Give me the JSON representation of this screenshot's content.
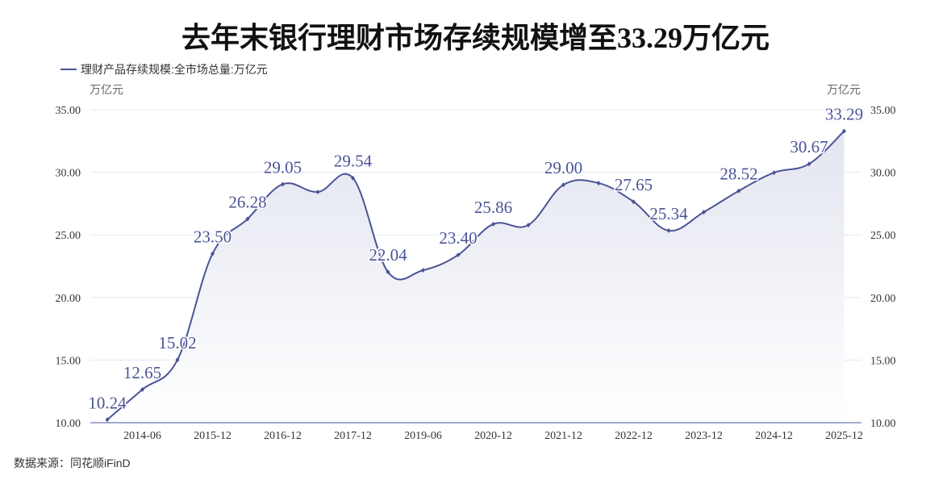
{
  "title": "去年末银行理财市场存续规模增至33.29万亿元",
  "legend": "理财产品存续规模:全市场总量:万亿元",
  "source": "数据来源：同花顺iFinD",
  "colors": {
    "series": "#4a5496",
    "fill": "#e3e5f0",
    "grid": "#e6e6f0"
  },
  "chart_data": {
    "type": "area",
    "title": "去年末银行理财市场存续规模增至33.29万亿元",
    "ylabel_left": "万亿元",
    "ylabel_right": "万亿元",
    "ylim": [
      10,
      35
    ],
    "yticks": [
      "10.00",
      "15.00",
      "20.00",
      "25.00",
      "30.00",
      "35.00"
    ],
    "grid": true,
    "legend_position": "top-left",
    "categories": [
      "",
      "2014-06",
      "",
      "2015-12",
      "",
      "2016-12",
      "",
      "2017-12",
      "",
      "2019-06",
      "",
      "2020-12",
      "",
      "2021-12",
      "",
      "2022-12",
      "",
      "2023-12",
      "",
      "2024-12",
      "",
      "2025-12"
    ],
    "series": [
      {
        "name": "理财产品存续规模:全市场总量:万亿元",
        "values": [
          10.24,
          12.65,
          15.02,
          23.5,
          26.28,
          29.05,
          28.43,
          29.54,
          22.04,
          22.18,
          23.4,
          25.86,
          25.79,
          29.0,
          29.14,
          27.65,
          25.34,
          26.82,
          28.52,
          29.97,
          30.67,
          33.29
        ],
        "data_labels": [
          "10.24",
          "12.65",
          "15.02",
          "23.50",
          "26.28",
          "29.05",
          null,
          "29.54",
          "22.04",
          null,
          "23.40",
          "25.86",
          null,
          "29.00",
          null,
          "27.65",
          "25.34",
          null,
          "28.52",
          null,
          "30.67",
          "33.29"
        ]
      }
    ]
  }
}
